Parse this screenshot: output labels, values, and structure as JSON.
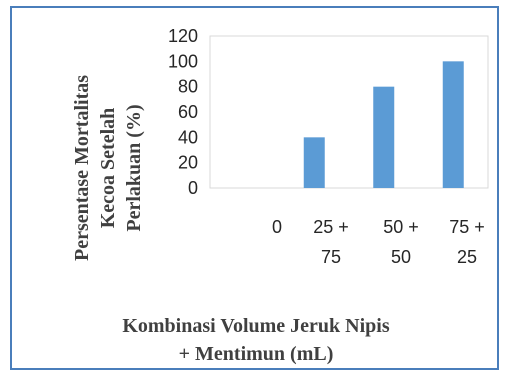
{
  "chart_data": {
    "type": "bar",
    "categories": [
      "0",
      "25 + 75",
      "50 + 50",
      "75 + 25"
    ],
    "category_lines": [
      [
        "0"
      ],
      [
        "25 +",
        "75"
      ],
      [
        "50 +",
        "50"
      ],
      [
        "75 +",
        "25"
      ]
    ],
    "values": [
      0,
      40,
      80,
      100
    ],
    "ylabel": "Persentase Mortalitas Kecoa Setelah Perlakuan (%)",
    "ylabel_lines": [
      "Persentase Mortalitas",
      "Kecoa Setelah",
      "Perlakuan (%)"
    ],
    "xlabel": "Kombinasi Volume Jeruk Nipis + Mentimun (mL)",
    "xlabel_lines": [
      "Kombinasi Volume Jeruk Nipis",
      "+ Mentimun (mL)"
    ],
    "yticks": [
      "0",
      "20",
      "40",
      "60",
      "80",
      "100",
      "120"
    ],
    "ylim": [
      0,
      120
    ],
    "grid": false,
    "legend": "none",
    "colors": {
      "bar": "#5b9bd5",
      "axis": "#d9d9d9",
      "frame": "#4a7ebb"
    }
  }
}
